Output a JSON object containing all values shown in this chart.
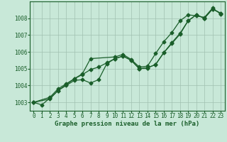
{
  "title": "",
  "xlabel": "Graphe pression niveau de la mer (hPa)",
  "ylabel": "",
  "background_color": "#c8e8d8",
  "plot_bg_color": "#c8e8d8",
  "grid_color": "#a0c0b0",
  "line_color": "#1a5e2a",
  "xlim": [
    -0.5,
    23.5
  ],
  "ylim": [
    1002.5,
    1009.0
  ],
  "yticks": [
    1003,
    1004,
    1005,
    1006,
    1007,
    1008
  ],
  "xticks": [
    0,
    1,
    2,
    3,
    4,
    5,
    6,
    7,
    8,
    9,
    10,
    11,
    12,
    13,
    14,
    15,
    16,
    17,
    18,
    19,
    20,
    21,
    22,
    23
  ],
  "line1_x": [
    0,
    1,
    2,
    3,
    4,
    5,
    6,
    7,
    8,
    9,
    10,
    11,
    12,
    13,
    14,
    15,
    16,
    17,
    18,
    19,
    20,
    21,
    22,
    23
  ],
  "line1_y": [
    1003.0,
    1002.85,
    1003.25,
    1003.7,
    1004.0,
    1004.3,
    1004.35,
    1004.15,
    1004.35,
    1005.3,
    1005.6,
    1005.75,
    1005.5,
    1005.0,
    1005.05,
    1005.25,
    1005.95,
    1006.5,
    1007.05,
    1007.85,
    1008.2,
    1008.0,
    1008.55,
    1008.3
  ],
  "line2_x": [
    0,
    2,
    3,
    4,
    5,
    6,
    7,
    8,
    9,
    10,
    11,
    12,
    13,
    14,
    15,
    16,
    17,
    18,
    19,
    20,
    21,
    22,
    23
  ],
  "line2_y": [
    1003.0,
    1003.2,
    1003.7,
    1004.05,
    1004.4,
    1004.65,
    1004.95,
    1005.1,
    1005.35,
    1005.6,
    1005.75,
    1005.5,
    1005.0,
    1005.05,
    1005.25,
    1005.95,
    1006.55,
    1007.1,
    1007.85,
    1008.2,
    1008.0,
    1008.55,
    1008.3
  ],
  "line3_x": [
    0,
    2,
    3,
    4,
    5,
    6,
    7,
    10,
    11,
    12,
    13,
    14,
    15,
    16,
    17,
    18,
    19,
    20,
    21,
    22,
    23
  ],
  "line3_y": [
    1003.0,
    1003.3,
    1003.8,
    1004.1,
    1004.4,
    1004.7,
    1005.6,
    1005.7,
    1005.85,
    1005.55,
    1005.1,
    1005.15,
    1005.9,
    1006.6,
    1007.15,
    1007.85,
    1008.2,
    1008.15,
    1008.05,
    1008.6,
    1008.25
  ],
  "marker": "D",
  "marker_size": 2.5,
  "line_width": 0.9,
  "fontsize_label": 6.5,
  "fontsize_tick": 5.5
}
